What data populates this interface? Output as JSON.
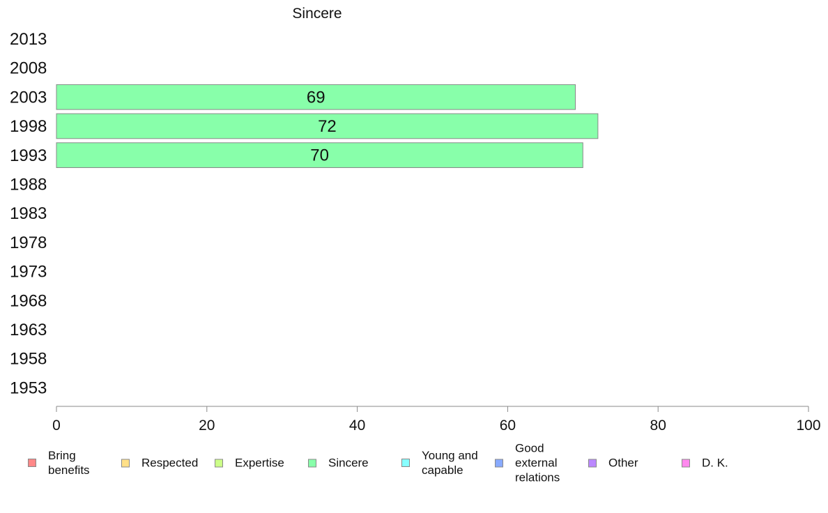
{
  "chart_data": {
    "type": "bar",
    "orientation": "horizontal",
    "title": "Sincere",
    "categories": [
      "2013",
      "2008",
      "2003",
      "1998",
      "1993",
      "1988",
      "1983",
      "1978",
      "1973",
      "1968",
      "1963",
      "1958",
      "1953"
    ],
    "series": [
      {
        "name": "Sincere",
        "color": "#88ffaa",
        "values": [
          null,
          null,
          69,
          72,
          70,
          null,
          null,
          null,
          null,
          null,
          null,
          null,
          null
        ]
      }
    ],
    "xlim": [
      0,
      100
    ],
    "xticks": [
      0,
      20,
      40,
      60,
      80,
      100
    ],
    "xlabel": "",
    "ylabel": "",
    "grid": false,
    "legend_position": "bottom"
  },
  "legend": [
    {
      "label": "Bring\nbenefits",
      "color": "#ff8888"
    },
    {
      "label": "Respected",
      "color": "#ffe088"
    },
    {
      "label": "Expertise",
      "color": "#ccff88"
    },
    {
      "label": "Sincere",
      "color": "#88ffaa"
    },
    {
      "label": "Young and\ncapable",
      "color": "#88ffff"
    },
    {
      "label": "Good\nexternal\nrelations",
      "color": "#88aaff"
    },
    {
      "label": "Other",
      "color": "#bb88ff"
    },
    {
      "label": "D. K.",
      "color": "#ff88ee"
    }
  ]
}
